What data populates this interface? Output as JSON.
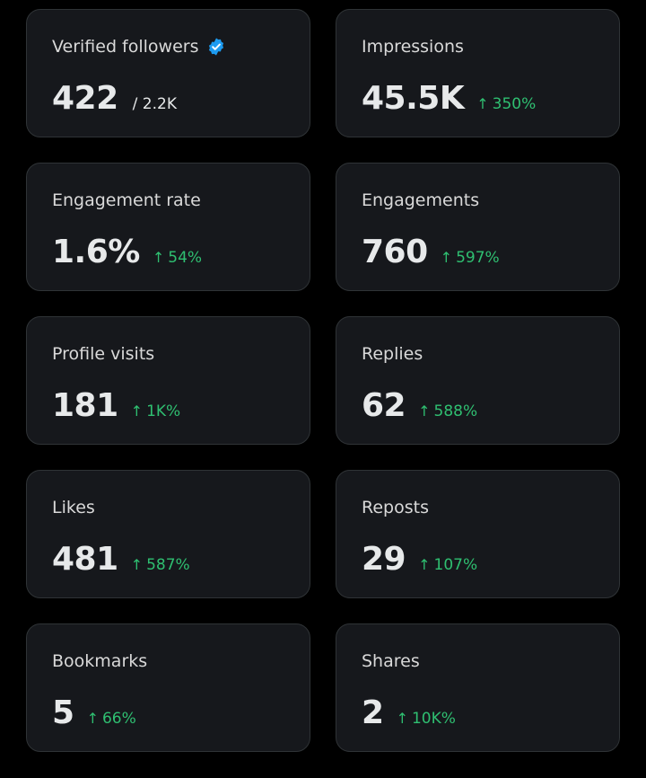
{
  "colors": {
    "background": "#000000",
    "card": "#16181c",
    "card_border": "#2f3336",
    "positive": "#2fbf71",
    "verified": "#1d9bf0"
  },
  "cards": [
    {
      "label": "Verified followers",
      "value": "422",
      "suffix": "/ 2.2K",
      "verified_icon": "verified-badge-icon"
    },
    {
      "label": "Impressions",
      "value": "45.5K",
      "change": "350%",
      "change_icon": "arrow-up-icon"
    },
    {
      "label": "Engagement rate",
      "value": "1.6%",
      "change": "54%",
      "change_icon": "arrow-up-icon"
    },
    {
      "label": "Engagements",
      "value": "760",
      "change": "597%",
      "change_icon": "arrow-up-icon"
    },
    {
      "label": "Profile visits",
      "value": "181",
      "change": "1K%",
      "change_icon": "arrow-up-icon"
    },
    {
      "label": "Replies",
      "value": "62",
      "change": "588%",
      "change_icon": "arrow-up-icon"
    },
    {
      "label": "Likes",
      "value": "481",
      "change": "587%",
      "change_icon": "arrow-up-icon"
    },
    {
      "label": "Reposts",
      "value": "29",
      "change": "107%",
      "change_icon": "arrow-up-icon"
    },
    {
      "label": "Bookmarks",
      "value": "5",
      "change": "66%",
      "change_icon": "arrow-up-icon"
    },
    {
      "label": "Shares",
      "value": "2",
      "change": "10K%",
      "change_icon": "arrow-up-icon"
    }
  ]
}
